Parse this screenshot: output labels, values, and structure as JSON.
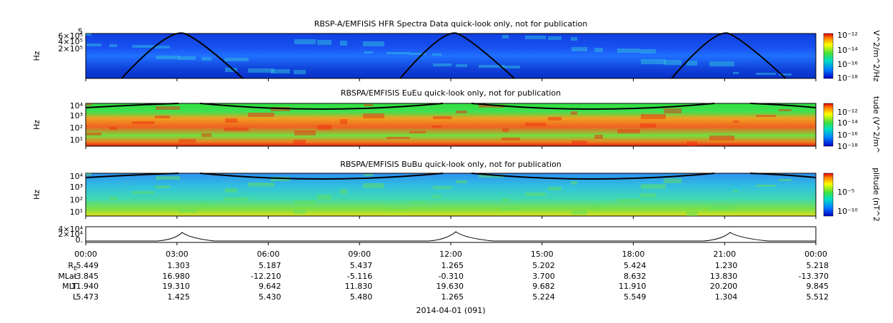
{
  "panels": [
    {
      "title": "RBSP-A/EMFISIS  HFR Spectra Data quick-look only, not for publication",
      "y_label": "Hz",
      "y_ticks": [
        "5",
        "6×10⁵",
        "4×10⁵",
        "2×10⁵"
      ],
      "colorbar_ticks": [
        "10⁻¹²",
        "10⁻¹⁴",
        "10⁻¹⁶",
        "10⁻¹⁸"
      ],
      "colorbar_label": "V^2/m^2/Hz"
    },
    {
      "title": "RBSPA/EMFISIS  EuEu quick-look only, not for publication",
      "y_label": "Hz",
      "y_ticks": [
        "10⁴",
        "10³",
        "10²",
        "10¹"
      ],
      "colorbar_ticks": [
        "10⁻¹²",
        "10⁻¹⁴",
        "10⁻¹⁶",
        "10⁻¹⁸"
      ],
      "colorbar_label": "tude (V^2/m^"
    },
    {
      "title": "RBSPA/EMFISIS  BuBu quick-look only, not for publication",
      "y_label": "Hz",
      "y_ticks": [
        "10⁴",
        "10³",
        "10²",
        "10¹"
      ],
      "colorbar_ticks": [
        "10⁻⁵",
        "10⁻¹⁰"
      ],
      "colorbar_label": "plitude (nT^2"
    }
  ],
  "orbit_panel": {
    "y_ticks": [
      "4×10⁴",
      "2×10⁴",
      "0."
    ]
  },
  "time_axis": {
    "ticks": [
      "00:00",
      "03:00",
      "06:00",
      "09:00",
      "12:00",
      "15:00",
      "18:00",
      "21:00",
      "00:00"
    ]
  },
  "ephemeris": {
    "rows": [
      {
        "label": "R",
        "label_sub": "E",
        "values": [
          "5.449",
          "1.303",
          "5.187",
          "5.437",
          "1.265",
          "5.202",
          "5.424",
          "1.230",
          "5.218"
        ]
      },
      {
        "label": "MLat",
        "values": [
          "-3.845",
          "16.980",
          "-12.210",
          "-5.116",
          "-0.310",
          "3.700",
          "8.632",
          "13.830",
          "-13.370"
        ]
      },
      {
        "label": "MLT",
        "values": [
          "11.940",
          "19.310",
          "9.642",
          "11.830",
          "19.630",
          "9.682",
          "11.910",
          "20.200",
          "9.845"
        ]
      },
      {
        "label": "L",
        "values": [
          "5.473",
          "1.425",
          "5.430",
          "5.480",
          "1.265",
          "5.224",
          "5.549",
          "1.304",
          "5.512"
        ]
      }
    ]
  },
  "date": "2014-04-01 (091)"
}
